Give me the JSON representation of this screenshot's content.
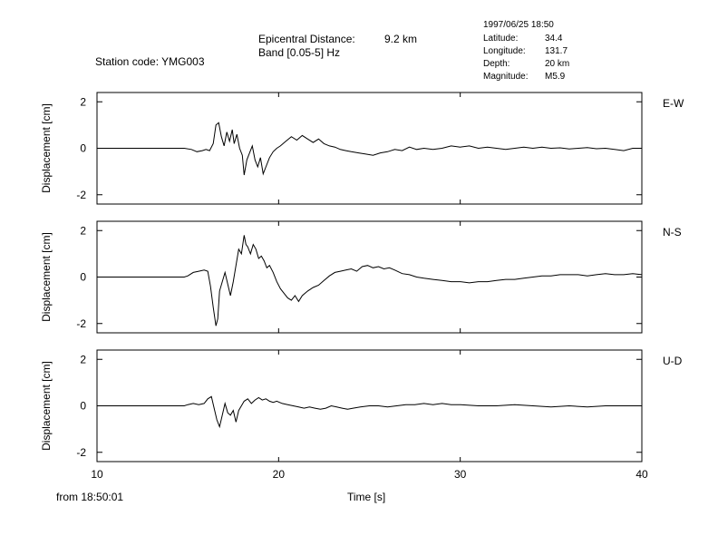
{
  "header": {
    "station": "Station code: YMG003",
    "epicentral_label": "Epicentral Distance:",
    "epicentral_value": "9.2 km",
    "band": "Band [0.05-5] Hz",
    "datetime": "1997/06/25 18:50",
    "latitude_label": "Latitude:",
    "latitude_value": "34.4",
    "longitude_label": "Longitude:",
    "longitude_value": "131.7",
    "depth_label": "Depth:",
    "depth_value": "20 km",
    "magnitude_label": "Magnitude:",
    "magnitude_value": "M5.9"
  },
  "footer": {
    "from": "from 18:50:01",
    "xlabel": "Time [s]"
  },
  "chart_data": [
    {
      "type": "line",
      "component": "E-W",
      "ylabel": "Displacement [cm]",
      "xlim": [
        10,
        40
      ],
      "ylim": [
        -2.4,
        2.4
      ],
      "xticks": [
        10,
        20,
        30,
        40
      ],
      "yticks": [
        -2,
        0,
        2
      ],
      "x": [
        10,
        14.8,
        15.2,
        15.5,
        15.8,
        16.0,
        16.2,
        16.4,
        16.55,
        16.7,
        16.85,
        17.0,
        17.15,
        17.3,
        17.45,
        17.55,
        17.7,
        17.85,
        18.0,
        18.1,
        18.25,
        18.4,
        18.55,
        18.7,
        18.85,
        19.0,
        19.15,
        19.3,
        19.5,
        19.7,
        19.9,
        20.1,
        20.4,
        20.7,
        21.0,
        21.3,
        21.6,
        21.9,
        22.2,
        22.5,
        22.8,
        23.1,
        23.4,
        23.7,
        24.0,
        24.4,
        24.8,
        25.2,
        25.6,
        26.0,
        26.4,
        26.8,
        27.2,
        27.6,
        28.0,
        28.5,
        29.0,
        29.5,
        30.0,
        30.5,
        31.0,
        31.5,
        32.0,
        32.5,
        33.0,
        33.5,
        34.0,
        34.5,
        35.0,
        35.5,
        36.0,
        36.5,
        37.0,
        37.5,
        38.0,
        38.5,
        39.0,
        39.5,
        40
      ],
      "values": [
        0,
        0,
        -0.05,
        -0.15,
        -0.1,
        -0.05,
        -0.1,
        0.2,
        1.0,
        1.1,
        0.5,
        0.1,
        0.7,
        0.3,
        0.8,
        0.2,
        0.6,
        0.0,
        -0.3,
        -1.15,
        -0.5,
        -0.2,
        0.1,
        -0.5,
        -0.8,
        -0.4,
        -1.1,
        -0.8,
        -0.4,
        -0.15,
        0.0,
        0.1,
        0.3,
        0.5,
        0.35,
        0.55,
        0.4,
        0.25,
        0.4,
        0.2,
        0.1,
        0.05,
        -0.05,
        -0.1,
        -0.15,
        -0.2,
        -0.25,
        -0.3,
        -0.2,
        -0.15,
        -0.05,
        -0.1,
        0.05,
        -0.05,
        0.0,
        -0.05,
        0.0,
        0.1,
        0.05,
        0.1,
        0.0,
        0.05,
        0.0,
        -0.05,
        0.0,
        0.05,
        0.0,
        0.05,
        0.0,
        0.02,
        -0.03,
        0.0,
        0.03,
        -0.02,
        0.0,
        -0.05,
        -0.1,
        0.0,
        0.0
      ]
    },
    {
      "type": "line",
      "component": "N-S",
      "ylabel": "Displacement [cm]",
      "xlim": [
        10,
        40
      ],
      "ylim": [
        -2.4,
        2.4
      ],
      "xticks": [
        10,
        20,
        30,
        40
      ],
      "yticks": [
        -2,
        0,
        2
      ],
      "x": [
        10,
        14.8,
        15.0,
        15.3,
        15.6,
        15.9,
        16.1,
        16.25,
        16.4,
        16.55,
        16.65,
        16.75,
        16.9,
        17.05,
        17.2,
        17.35,
        17.5,
        17.65,
        17.8,
        17.95,
        18.1,
        18.2,
        18.3,
        18.45,
        18.6,
        18.75,
        18.9,
        19.05,
        19.2,
        19.35,
        19.5,
        19.7,
        19.9,
        20.1,
        20.3,
        20.5,
        20.7,
        20.9,
        21.1,
        21.3,
        21.6,
        21.9,
        22.2,
        22.5,
        22.8,
        23.1,
        23.4,
        23.7,
        24.0,
        24.3,
        24.6,
        24.9,
        25.2,
        25.5,
        25.8,
        26.1,
        26.4,
        26.8,
        27.2,
        27.6,
        28.0,
        28.5,
        29.0,
        29.5,
        30.0,
        30.5,
        31.0,
        31.5,
        32.0,
        32.5,
        33.0,
        33.5,
        34.0,
        34.5,
        35.0,
        35.5,
        36.0,
        36.5,
        37.0,
        37.5,
        38.0,
        38.5,
        39.0,
        39.5,
        40
      ],
      "values": [
        0,
        0,
        0.05,
        0.2,
        0.25,
        0.3,
        0.25,
        -0.4,
        -1.3,
        -2.1,
        -1.8,
        -0.6,
        -0.2,
        0.2,
        -0.3,
        -0.8,
        -0.2,
        0.5,
        1.2,
        1.0,
        1.8,
        1.4,
        1.3,
        1.0,
        1.4,
        1.2,
        0.8,
        0.9,
        0.7,
        0.4,
        0.5,
        0.2,
        -0.2,
        -0.5,
        -0.7,
        -0.9,
        -1.0,
        -0.8,
        -1.05,
        -0.8,
        -0.6,
        -0.45,
        -0.35,
        -0.15,
        0.05,
        0.2,
        0.25,
        0.3,
        0.35,
        0.25,
        0.45,
        0.5,
        0.4,
        0.45,
        0.35,
        0.4,
        0.3,
        0.15,
        0.1,
        0.0,
        -0.05,
        -0.1,
        -0.15,
        -0.2,
        -0.2,
        -0.25,
        -0.2,
        -0.2,
        -0.15,
        -0.1,
        -0.1,
        -0.05,
        0.0,
        0.05,
        0.05,
        0.1,
        0.1,
        0.1,
        0.05,
        0.1,
        0.15,
        0.1,
        0.1,
        0.15,
        0.1
      ]
    },
    {
      "type": "line",
      "component": "U-D",
      "ylabel": "Displacement [cm]",
      "xlim": [
        10,
        40
      ],
      "ylim": [
        -2.4,
        2.4
      ],
      "xticks": [
        10,
        20,
        30,
        40
      ],
      "yticks": [
        -2,
        0,
        2
      ],
      "x": [
        10,
        14.8,
        15.0,
        15.3,
        15.6,
        15.9,
        16.1,
        16.3,
        16.45,
        16.6,
        16.75,
        16.9,
        17.05,
        17.2,
        17.35,
        17.5,
        17.65,
        17.8,
        17.95,
        18.1,
        18.3,
        18.5,
        18.7,
        18.9,
        19.1,
        19.3,
        19.5,
        19.7,
        19.9,
        20.2,
        20.5,
        20.8,
        21.1,
        21.4,
        21.7,
        22.0,
        22.3,
        22.6,
        22.9,
        23.2,
        23.5,
        23.8,
        24.1,
        24.5,
        25.0,
        25.5,
        26.0,
        26.5,
        27.0,
        27.5,
        28.0,
        28.5,
        29.0,
        29.5,
        30.0,
        31.0,
        32.0,
        33.0,
        34.0,
        35.0,
        36.0,
        37.0,
        38.0,
        39.0,
        40
      ],
      "values": [
        0,
        0,
        0.05,
        0.1,
        0.05,
        0.1,
        0.3,
        0.4,
        -0.1,
        -0.6,
        -0.9,
        -0.4,
        0.1,
        -0.3,
        -0.4,
        -0.2,
        -0.7,
        -0.2,
        0.0,
        0.2,
        0.3,
        0.1,
        0.25,
        0.35,
        0.25,
        0.3,
        0.2,
        0.15,
        0.2,
        0.1,
        0.05,
        0.0,
        -0.05,
        -0.1,
        -0.05,
        -0.1,
        -0.15,
        -0.1,
        0.0,
        -0.05,
        -0.1,
        -0.15,
        -0.1,
        -0.05,
        0.0,
        0.0,
        -0.05,
        0.0,
        0.05,
        0.05,
        0.1,
        0.05,
        0.1,
        0.05,
        0.05,
        0.0,
        0.0,
        0.05,
        0.0,
        -0.05,
        0.0,
        -0.05,
        0.0,
        0.0,
        0.0
      ]
    }
  ]
}
